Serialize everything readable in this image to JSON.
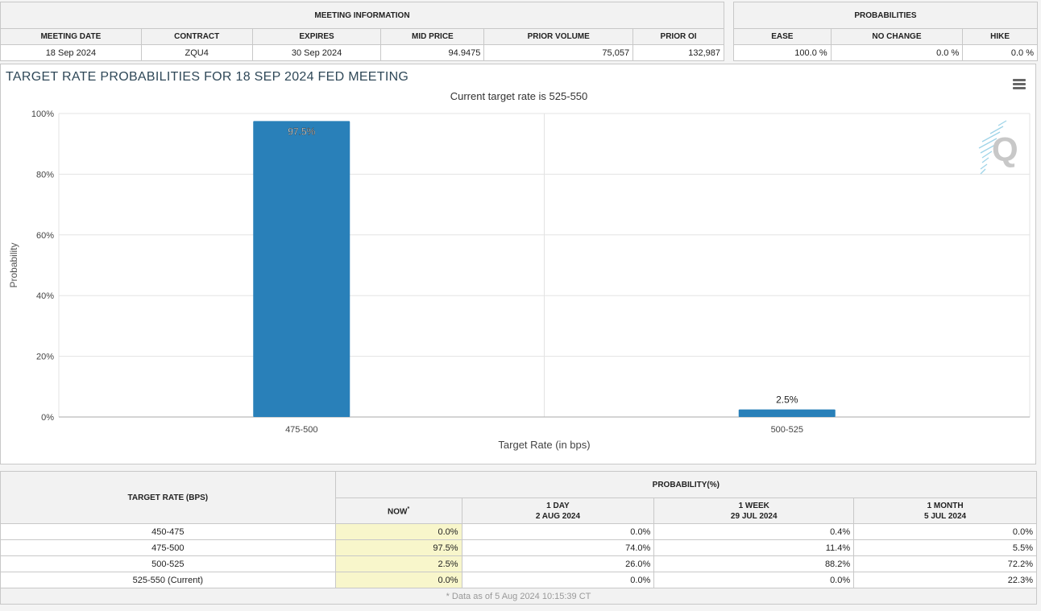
{
  "meeting": {
    "section_title": "MEETING INFORMATION",
    "headers": [
      "MEETING DATE",
      "CONTRACT",
      "EXPIRES",
      "MID PRICE",
      "PRIOR VOLUME",
      "PRIOR OI"
    ],
    "values": [
      "18 Sep 2024",
      "ZQU4",
      "30 Sep 2024",
      "94.9475",
      "75,057",
      "132,987"
    ]
  },
  "probabilities": {
    "section_title": "PROBABILITIES",
    "headers": [
      "EASE",
      "NO CHANGE",
      "HIKE"
    ],
    "values": [
      "100.0 %",
      "0.0 %",
      "0.0 %"
    ]
  },
  "chart_panel": {
    "title": "TARGET RATE PROBABILITIES FOR 18 SEP 2024 FED MEETING",
    "subtitle": "Current target rate is 525-550",
    "menu_icon": "hamburger-menu-icon",
    "watermark_icon": "q-logo-icon"
  },
  "chart_data": {
    "type": "bar",
    "title": "TARGET RATE PROBABILITIES FOR 18 SEP 2024 FED MEETING",
    "subtitle": "Current target rate is 525-550",
    "categories": [
      "475-500",
      "500-525"
    ],
    "values": [
      97.5,
      2.5
    ],
    "data_labels": [
      "97.5%",
      "2.5%"
    ],
    "xlabel": "Target Rate (in bps)",
    "ylabel": "Probability",
    "ylim": [
      0,
      100
    ],
    "yticks": [
      "0%",
      "20%",
      "40%",
      "60%",
      "80%",
      "100%"
    ],
    "grid": true,
    "bar_color": "#2980b9"
  },
  "rates_table": {
    "rate_header": "TARGET RATE (BPS)",
    "prob_header": "PROBABILITY(%)",
    "columns": [
      {
        "line1": "NOW",
        "sup": "*",
        "line2": ""
      },
      {
        "line1": "1 DAY",
        "line2": "2 AUG 2024"
      },
      {
        "line1": "1 WEEK",
        "line2": "29 JUL 2024"
      },
      {
        "line1": "1 MONTH",
        "line2": "5 JUL 2024"
      }
    ],
    "rows": [
      {
        "rate": "450-475",
        "now": "0.0%",
        "day": "0.0%",
        "week": "0.4%",
        "month": "0.0%"
      },
      {
        "rate": "475-500",
        "now": "97.5%",
        "day": "74.0%",
        "week": "11.4%",
        "month": "5.5%"
      },
      {
        "rate": "500-525",
        "now": "2.5%",
        "day": "26.0%",
        "week": "88.2%",
        "month": "72.2%"
      },
      {
        "rate": "525-550 (Current)",
        "now": "0.0%",
        "day": "0.0%",
        "week": "0.0%",
        "month": "22.3%"
      }
    ],
    "footnote": "* Data as of 5 Aug 2024 10:15:39 CT"
  }
}
